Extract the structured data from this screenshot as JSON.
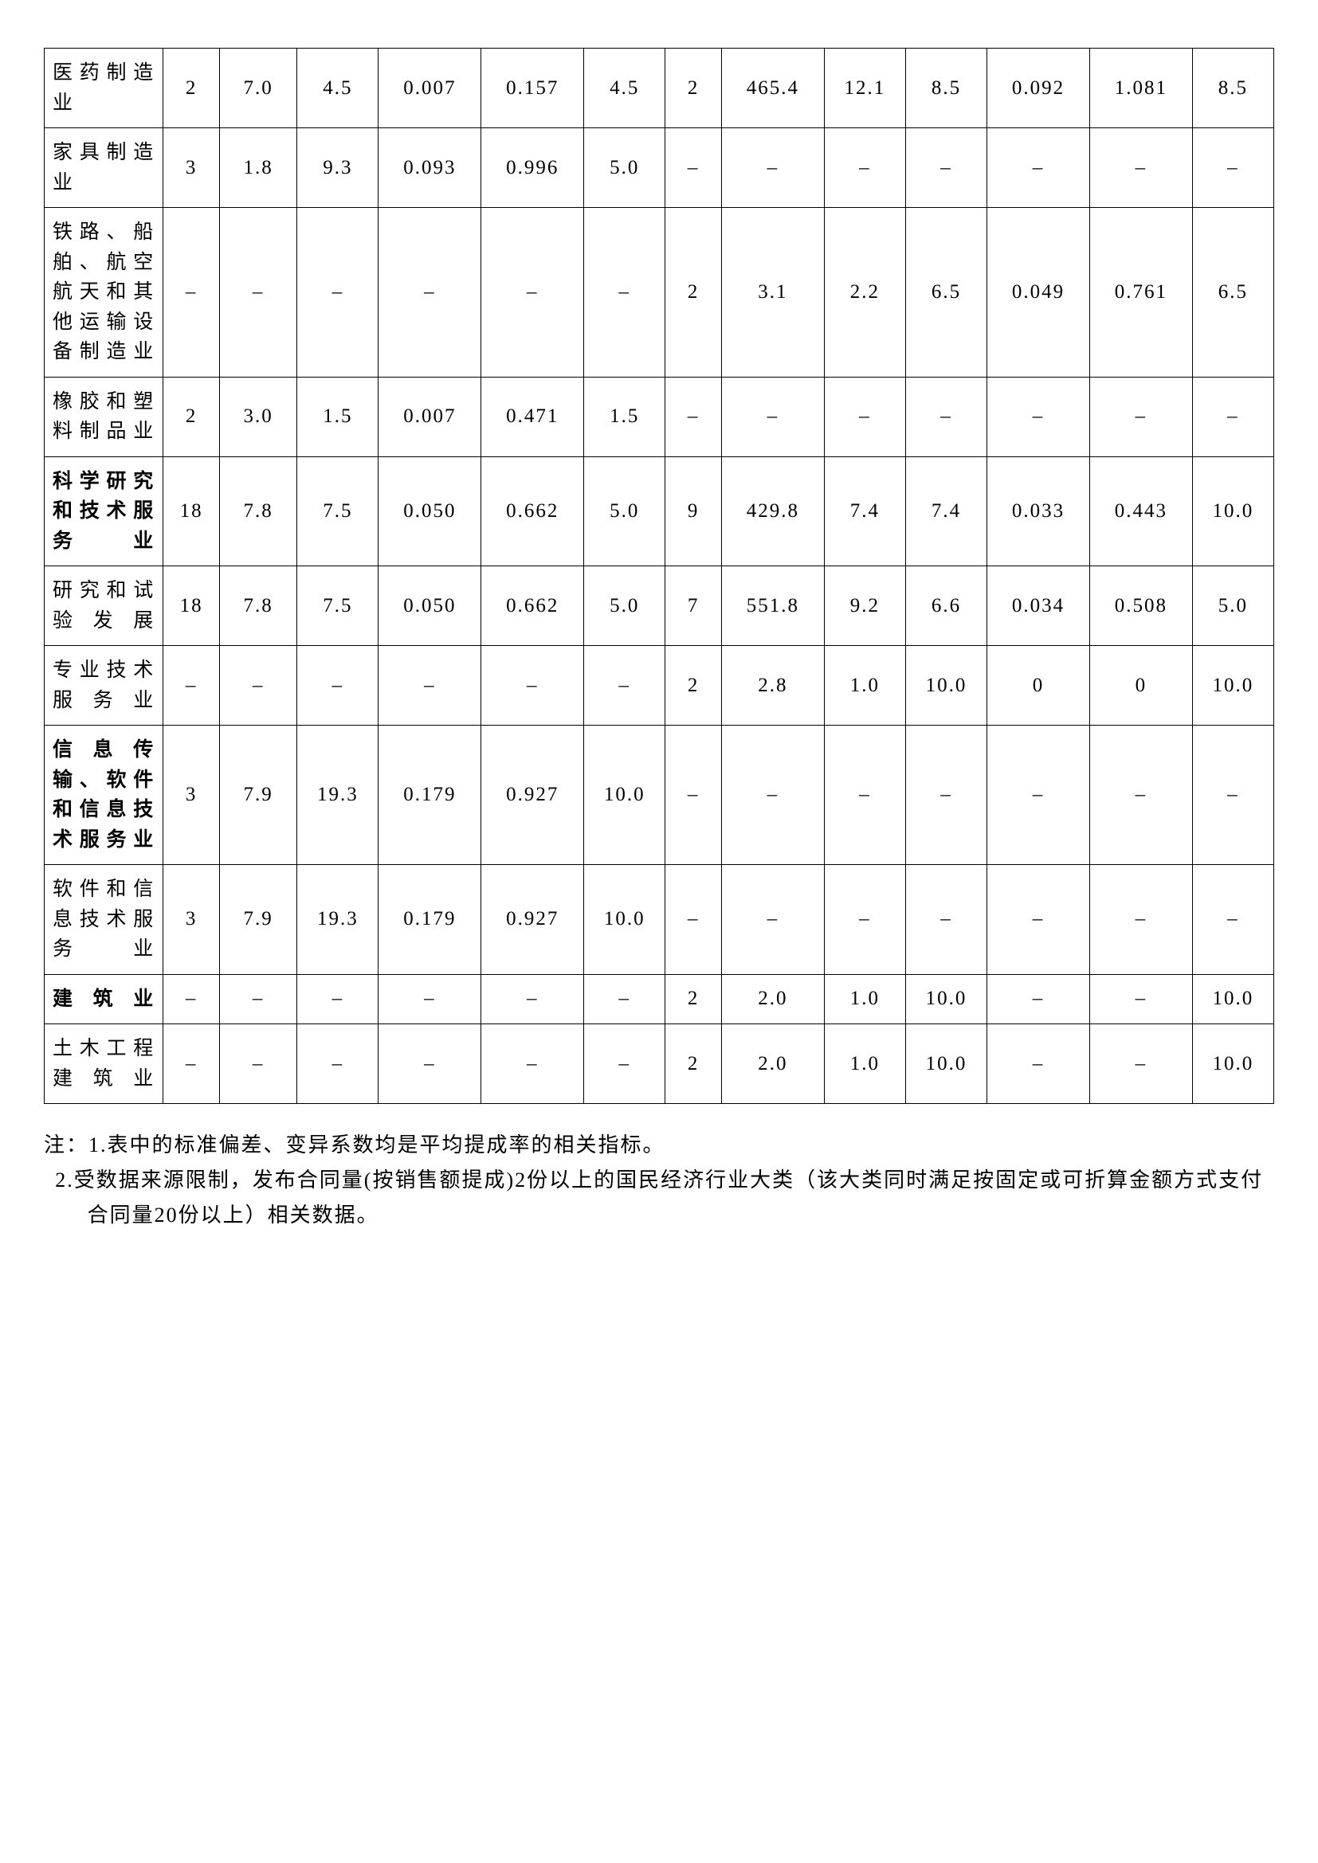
{
  "table": {
    "rows": [
      {
        "label": "医药制造业",
        "bold": false,
        "cells": [
          "2",
          "7.0",
          "4.5",
          "0.007",
          "0.157",
          "4.5",
          "2",
          "465.4",
          "12.1",
          "8.5",
          "0.092",
          "1.081",
          "8.5"
        ]
      },
      {
        "label": "家具制造业",
        "bold": false,
        "cells": [
          "3",
          "1.8",
          "9.3",
          "0.093",
          "0.996",
          "5.0",
          "–",
          "–",
          "–",
          "–",
          "–",
          "–",
          "–"
        ]
      },
      {
        "label": "铁路、船舶、航空航天和其他运输设备制造业",
        "bold": false,
        "cells": [
          "–",
          "–",
          "–",
          "–",
          "–",
          "–",
          "2",
          "3.1",
          "2.2",
          "6.5",
          "0.049",
          "0.761",
          "6.5"
        ]
      },
      {
        "label": "橡胶和塑料制品业",
        "bold": false,
        "cells": [
          "2",
          "3.0",
          "1.5",
          "0.007",
          "0.471",
          "1.5",
          "–",
          "–",
          "–",
          "–",
          "–",
          "–",
          "–"
        ]
      },
      {
        "label": "科学研究和技术服务业",
        "bold": true,
        "cells": [
          "18",
          "7.8",
          "7.5",
          "0.050",
          "0.662",
          "5.0",
          "9",
          "429.8",
          "7.4",
          "7.4",
          "0.033",
          "0.443",
          "10.0"
        ]
      },
      {
        "label": "研究和试验发展",
        "bold": false,
        "cells": [
          "18",
          "7.8",
          "7.5",
          "0.050",
          "0.662",
          "5.0",
          "7",
          "551.8",
          "9.2",
          "6.6",
          "0.034",
          "0.508",
          "5.0"
        ]
      },
      {
        "label": "专业技术服务业",
        "bold": false,
        "cells": [
          "–",
          "–",
          "–",
          "–",
          "–",
          "–",
          "2",
          "2.8",
          "1.0",
          "10.0",
          "0",
          "0",
          "10.0"
        ]
      },
      {
        "label": "信息传输、软件和信息技术服务业",
        "bold": true,
        "cells": [
          "3",
          "7.9",
          "19.3",
          "0.179",
          "0.927",
          "10.0",
          "–",
          "–",
          "–",
          "–",
          "–",
          "–",
          "–"
        ]
      },
      {
        "label": "软件和信息技术服务业",
        "bold": false,
        "cells": [
          "3",
          "7.9",
          "19.3",
          "0.179",
          "0.927",
          "10.0",
          "–",
          "–",
          "–",
          "–",
          "–",
          "–",
          "–"
        ]
      },
      {
        "label": "建筑业",
        "bold": true,
        "cells": [
          "–",
          "–",
          "–",
          "–",
          "–",
          "–",
          "2",
          "2.0",
          "1.0",
          "10.0",
          "–",
          "–",
          "10.0"
        ]
      },
      {
        "label": "土木工程建筑业",
        "bold": false,
        "cells": [
          "–",
          "–",
          "–",
          "–",
          "–",
          "–",
          "2",
          "2.0",
          "1.0",
          "10.0",
          "–",
          "–",
          "10.0"
        ]
      }
    ],
    "column_widths": [
      "9.5%",
      "4.5%",
      "6.2%",
      "6.5%",
      "8.2%",
      "8.2%",
      "6.5%",
      "4.5%",
      "8.2%",
      "6.5%",
      "6.5%",
      "8.2%",
      "8.2%",
      "6.5%"
    ]
  },
  "notes": {
    "line1": "注：1.表中的标准偏差、变异系数均是平均提成率的相关指标。",
    "line2": "2.受数据来源限制，发布合同量(按销售额提成)2份以上的国民经济行业大类（该大类同时满足按固定或可折算金额方式支付合同量20份以上）相关数据。"
  }
}
